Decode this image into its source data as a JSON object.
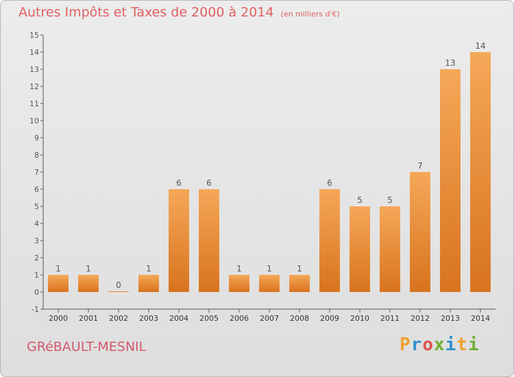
{
  "header": {
    "title": "Autres Impôts et Taxes de 2000 à 2014",
    "unit": "(en milliers d'€)"
  },
  "footer": {
    "commune": "GRéBAULT-MESNIL",
    "brand_letters": [
      {
        "char": "P",
        "color": "#f0a030"
      },
      {
        "char": "r",
        "color": "#3090d0"
      },
      {
        "char": "o",
        "color": "#e05050"
      },
      {
        "char": "x",
        "color": "#70b030"
      },
      {
        "char": "i",
        "color": "#3090d0"
      },
      {
        "char": "t",
        "color": "#f0a030"
      },
      {
        "char": "i",
        "color": "#70b030"
      }
    ]
  },
  "chart_data": {
    "type": "bar",
    "title": "Autres Impôts et Taxes de 2000 à 2014",
    "categories": [
      "2000",
      "2001",
      "2002",
      "2003",
      "2004",
      "2005",
      "2006",
      "2007",
      "2008",
      "2009",
      "2010",
      "2011",
      "2012",
      "2013",
      "2014"
    ],
    "values": [
      1,
      1,
      0,
      1,
      6,
      6,
      1,
      1,
      1,
      6,
      5,
      5,
      7,
      13,
      14
    ],
    "value_labels": [
      "1",
      "1",
      "0",
      "1",
      "6",
      "6",
      "1",
      "1",
      "1",
      "6",
      "5",
      "5",
      "7",
      "13",
      "14"
    ],
    "ylim": [
      -1,
      15
    ],
    "yticks": [
      -1,
      0,
      1,
      2,
      3,
      4,
      5,
      6,
      7,
      8,
      9,
      10,
      11,
      12,
      13,
      14,
      15
    ],
    "ytick_labels": [
      "-1",
      "0",
      "1",
      "2",
      "3",
      "4",
      "5",
      "6",
      "7",
      "8",
      "9",
      "10",
      "11",
      "12",
      "13",
      "14",
      "15"
    ],
    "grid": false,
    "colors": {
      "bar_light": "#f5a858",
      "bar_dark": "#d8731e",
      "axis": "#555555",
      "label": "#555555"
    }
  }
}
